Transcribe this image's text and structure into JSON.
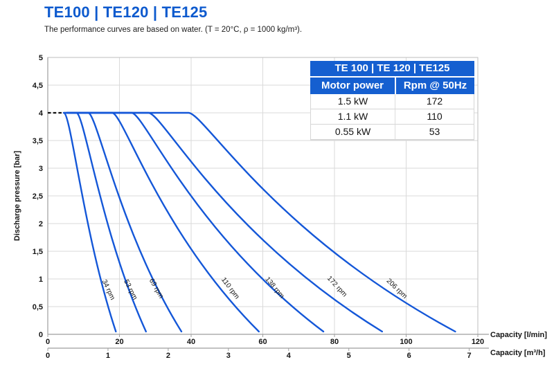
{
  "page": {
    "title": "TE100 | TE120 | TE125",
    "subtitle": "The performance curves are based on water. (T = 20°C, ρ = 1000 kg/m³)."
  },
  "colors": {
    "accent_blue": "#0d5ace",
    "table_header_blue": "#155fd0",
    "curve_blue": "#1457d8",
    "grid": "#dadada",
    "frame": "#bdbdbd",
    "axis": "#9e9e9e",
    "text": "#141414",
    "dashed_guide": "#111111"
  },
  "table": {
    "title": "TE 100 | TE 120 | TE125",
    "columns": [
      "Motor power",
      "Rpm @ 50Hz"
    ],
    "rows": [
      [
        "1.5 kW",
        "172"
      ],
      [
        "1.1 kW",
        "110"
      ],
      [
        "0.55 kW",
        "53"
      ]
    ]
  },
  "chart_data": {
    "type": "line",
    "title": "",
    "xlabel_primary": "Capacity [l/min]",
    "xlabel_secondary": "Capacity [m³/h]",
    "ylabel": "Discharge pressure [bar]",
    "xlim_lmin": [
      0,
      120
    ],
    "ylim_bar": [
      0,
      5
    ],
    "grid": true,
    "x_ticks_lmin": [
      0,
      20,
      40,
      60,
      80,
      100,
      120
    ],
    "x_ticks_m3h": [
      0,
      1,
      2,
      3,
      4,
      5,
      6,
      7
    ],
    "y_ticks_bar": [
      0,
      0.5,
      1,
      1.5,
      2,
      2.5,
      3,
      3.5,
      4,
      4.5,
      5
    ],
    "y_tick_labels": [
      "0",
      "0,5",
      "1",
      "1,5",
      "2",
      "2,5",
      "3",
      "3,5",
      "4",
      "4,5",
      "5"
    ],
    "max_pressure_bar": 4,
    "dashed_guide": {
      "pressure_bar": 4,
      "from_lmin": 0,
      "to_lmin": 5.4
    },
    "series": [
      {
        "name": "34 rpm",
        "flat_from_lmin": 5.4,
        "flat_bar": 4,
        "knee_lmin": 6.0,
        "max_flow_lmin": 19.0,
        "label": {
          "lmin": 16.4,
          "bar": 0.79,
          "angle_deg": 65
        }
      },
      {
        "name": "53 rpm",
        "flat_from_lmin": 5.4,
        "flat_bar": 4,
        "knee_lmin": 9.5,
        "max_flow_lmin": 27.4,
        "label": {
          "lmin": 22.6,
          "bar": 0.79,
          "angle_deg": 63
        }
      },
      {
        "name": "69 rpm",
        "flat_from_lmin": 5.4,
        "flat_bar": 4,
        "knee_lmin": 12.8,
        "max_flow_lmin": 37.3,
        "label": {
          "lmin": 29.8,
          "bar": 0.81,
          "angle_deg": 60
        }
      },
      {
        "name": "110 rpm",
        "flat_from_lmin": 5.4,
        "flat_bar": 4,
        "knee_lmin": 19.5,
        "max_flow_lmin": 58.9,
        "label": {
          "lmin": 50.5,
          "bar": 0.81,
          "angle_deg": 53
        }
      },
      {
        "name": "138 rpm",
        "flat_from_lmin": 5.4,
        "flat_bar": 4,
        "knee_lmin": 24.9,
        "max_flow_lmin": 76.9,
        "label": {
          "lmin": 62.9,
          "bar": 0.82,
          "angle_deg": 50
        }
      },
      {
        "name": "172 rpm",
        "flat_from_lmin": 5.4,
        "flat_bar": 4,
        "knee_lmin": 29.6,
        "max_flow_lmin": 93.3,
        "label": {
          "lmin": 80.3,
          "bar": 0.84,
          "angle_deg": 47
        }
      },
      {
        "name": "206 rpm",
        "flat_from_lmin": 5.4,
        "flat_bar": 4,
        "knee_lmin": 40.8,
        "max_flow_lmin": 113.7,
        "label": {
          "lmin": 97.0,
          "bar": 0.8,
          "angle_deg": 44
        }
      }
    ]
  }
}
